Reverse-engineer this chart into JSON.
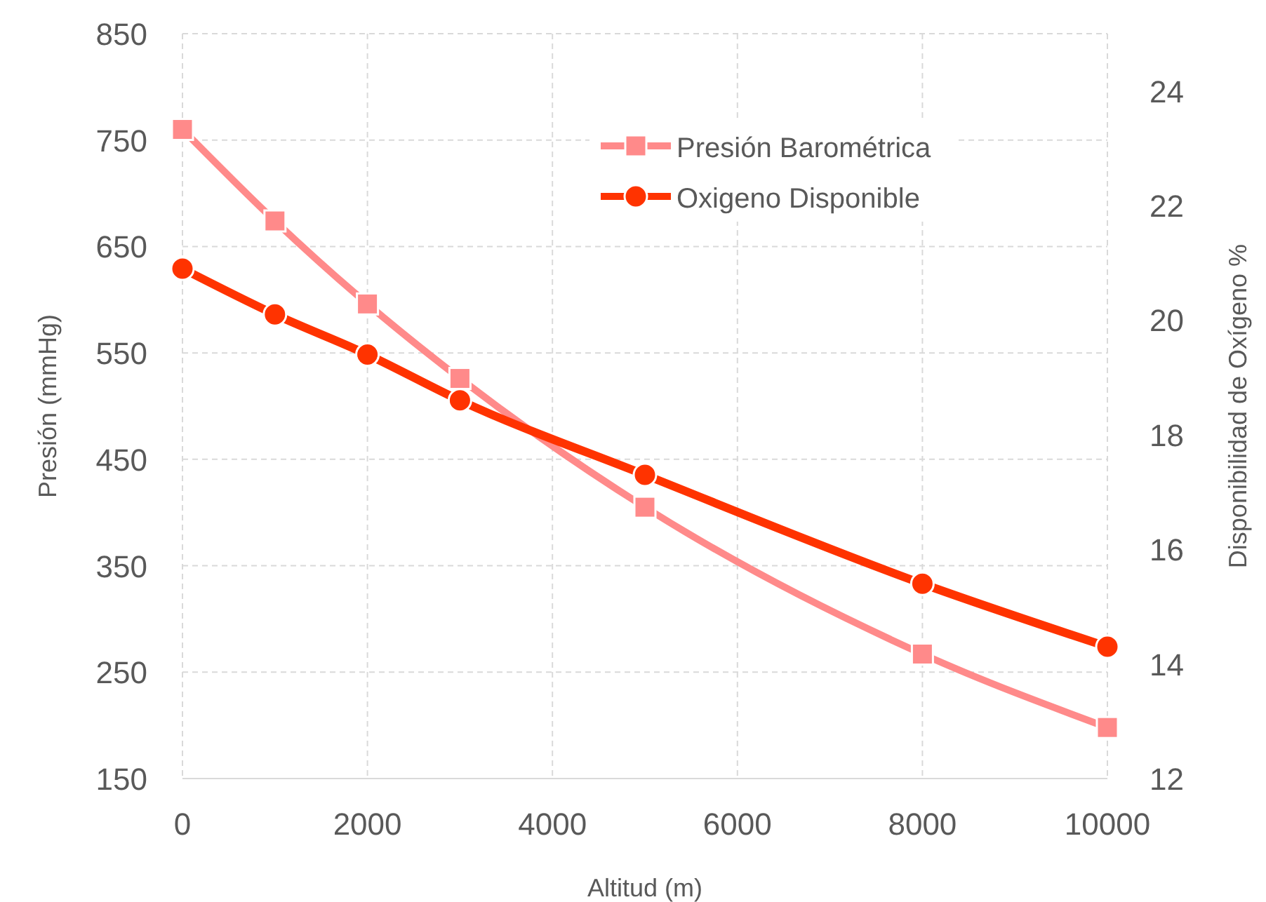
{
  "chart_data": {
    "type": "line",
    "xlabel": "Altitud (m)",
    "ylabel": "Presión (mmHg)",
    "y2label": "Disponibilidad de Oxígeno  %",
    "x": [
      0,
      1000,
      2000,
      3000,
      5000,
      8000,
      10000
    ],
    "series": [
      {
        "name": "Presión Barométrica",
        "color": "#ff8a8a",
        "marker": "square",
        "values": [
          760,
          674,
          596,
          526,
          405,
          267,
          198
        ]
      },
      {
        "name": "Oxigeno Disponible",
        "color": "#ff3300",
        "marker": "circle",
        "axis": "y2",
        "values": [
          20.9,
          20.1,
          19.4,
          18.6,
          17.3,
          15.4,
          14.3
        ]
      }
    ],
    "xlim": [
      0,
      10000
    ],
    "xticks": [
      0,
      2000,
      4000,
      6000,
      8000,
      10000
    ],
    "ylim": [
      150,
      850
    ],
    "yticks": [
      150,
      250,
      350,
      450,
      550,
      650,
      750,
      850
    ],
    "y2lim": [
      12,
      25
    ],
    "y2ticks": [
      12,
      14,
      16,
      18,
      20,
      22,
      24
    ],
    "grid": true,
    "legend": "top right",
    "line_style": "solid"
  }
}
